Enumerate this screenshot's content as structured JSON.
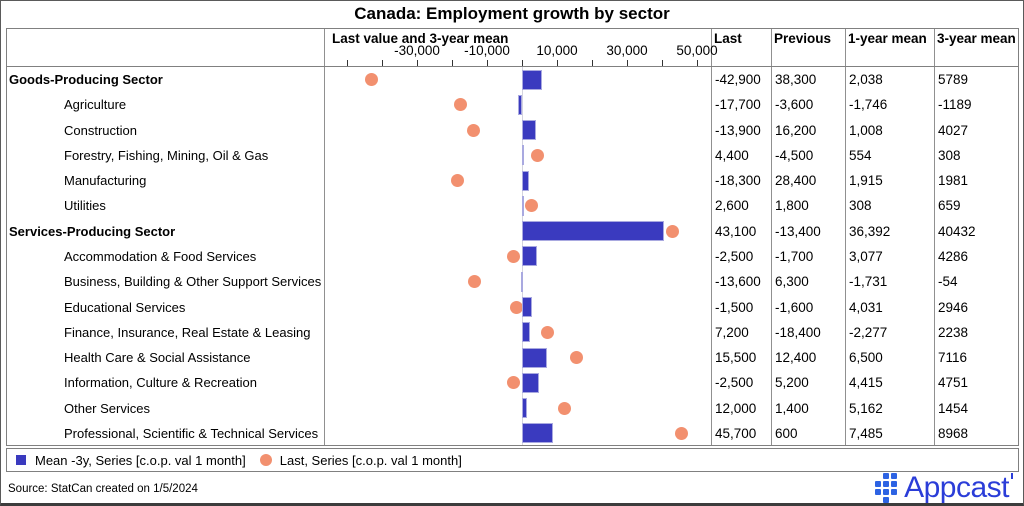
{
  "title": "Canada: Employment growth by sector",
  "table": {
    "chart_col_header": "Last value and 3-year mean",
    "value_col_headers": [
      "Last",
      "Previous",
      "1-year mean",
      "3-year mean"
    ]
  },
  "rows": [
    {
      "label": "Goods-Producing Sector",
      "group": true,
      "cells": [
        "-42,900",
        "38,300",
        "2,038",
        "5789"
      ]
    },
    {
      "label": "Agriculture",
      "group": false,
      "cells": [
        "-17,700",
        "-3,600",
        "-1,746",
        "-1189"
      ]
    },
    {
      "label": "Construction",
      "group": false,
      "cells": [
        "-13,900",
        "16,200",
        "1,008",
        "4027"
      ]
    },
    {
      "label": "Forestry, Fishing, Mining, Oil & Gas",
      "group": false,
      "cells": [
        "4,400",
        "-4,500",
        "554",
        "308"
      ]
    },
    {
      "label": "Manufacturing",
      "group": false,
      "cells": [
        "-18,300",
        "28,400",
        "1,915",
        "1981"
      ]
    },
    {
      "label": "Utilities",
      "group": false,
      "cells": [
        "2,600",
        "1,800",
        "308",
        "659"
      ]
    },
    {
      "label": "Services-Producing Sector",
      "group": true,
      "cells": [
        "43,100",
        "-13,400",
        "36,392",
        "40432"
      ]
    },
    {
      "label": "Accommodation & Food Services",
      "group": false,
      "cells": [
        "-2,500",
        "-1,700",
        "3,077",
        "4286"
      ]
    },
    {
      "label": "Business, Building & Other Support Services",
      "group": false,
      "cells": [
        "-13,600",
        "6,300",
        "-1,731",
        "-54"
      ]
    },
    {
      "label": "Educational Services",
      "group": false,
      "cells": [
        "-1,500",
        "-1,600",
        "4,031",
        "2946"
      ]
    },
    {
      "label": "Finance, Insurance, Real Estate & Leasing",
      "group": false,
      "cells": [
        "7,200",
        "-18,400",
        "-2,277",
        "2238"
      ]
    },
    {
      "label": "Health Care & Social Assistance",
      "group": false,
      "cells": [
        "15,500",
        "12,400",
        "6,500",
        "7116"
      ]
    },
    {
      "label": "Information, Culture & Recreation",
      "group": false,
      "cells": [
        "-2,500",
        "5,200",
        "4,415",
        "4751"
      ]
    },
    {
      "label": "Other Services",
      "group": false,
      "cells": [
        "12,000",
        "1,400",
        "5,162",
        "1454"
      ]
    },
    {
      "label": "Professional, Scientific & Technical Services",
      "group": false,
      "cells": [
        "45,700",
        "600",
        "7,485",
        "8968"
      ]
    }
  ],
  "chart_data": {
    "type": "bar",
    "orientation": "horizontal",
    "title": "Last value and 3-year mean",
    "categories": [
      "Goods-Producing Sector",
      "Agriculture",
      "Construction",
      "Forestry, Fishing, Mining, Oil & Gas",
      "Manufacturing",
      "Utilities",
      "Services-Producing Sector",
      "Accommodation & Food Services",
      "Business, Building & Other Support Services",
      "Educational Services",
      "Finance, Insurance, Real Estate & Leasing",
      "Health Care & Social Assistance",
      "Information, Culture & Recreation",
      "Other Services",
      "Professional, Scientific & Technical Services"
    ],
    "series": [
      {
        "name": "Mean -3y, Series [c.o.p. val 1 month]",
        "marker": "bar",
        "color": "#3a3abf",
        "values": [
          5789,
          -1189,
          4027,
          308,
          1981,
          659,
          40432,
          4286,
          -54,
          2946,
          2238,
          7116,
          4751,
          1454,
          8968
        ]
      },
      {
        "name": "Last, Series [c.o.p. val 1 month]",
        "marker": "dot",
        "color": "#f2906f",
        "values": [
          -42900,
          -17700,
          -13900,
          4400,
          -18300,
          2600,
          43100,
          -2500,
          -13600,
          -1500,
          7200,
          15500,
          -2500,
          12000,
          45700
        ]
      }
    ],
    "axis": {
      "min": -50000,
      "max": 50000,
      "minor_step": 10000,
      "labeled_ticks": [
        -30000,
        -10000,
        10000,
        30000,
        50000
      ],
      "tick_labels": [
        "-30,000",
        "-10,000",
        "10,000",
        "30,000",
        "50,000"
      ],
      "grid": false,
      "zero_line": true
    },
    "legend_position": "bottom"
  },
  "legend": {
    "items": [
      {
        "label": "Mean -3y, Series [c.o.p. val 1 month]",
        "marker": "square",
        "color": "#3a3abf"
      },
      {
        "label": "Last, Series [c.o.p. val 1 month]",
        "marker": "circle",
        "color": "#f2906f"
      }
    ]
  },
  "footer": {
    "source": "Source: StatCan created on 1/5/2024",
    "brand": "Appcast"
  },
  "colors": {
    "bar": "#3a3abf",
    "dot": "#f2906f",
    "brand_text": "#2b3dd8",
    "brand_icon": "#2d63e3",
    "border": "#808080"
  }
}
